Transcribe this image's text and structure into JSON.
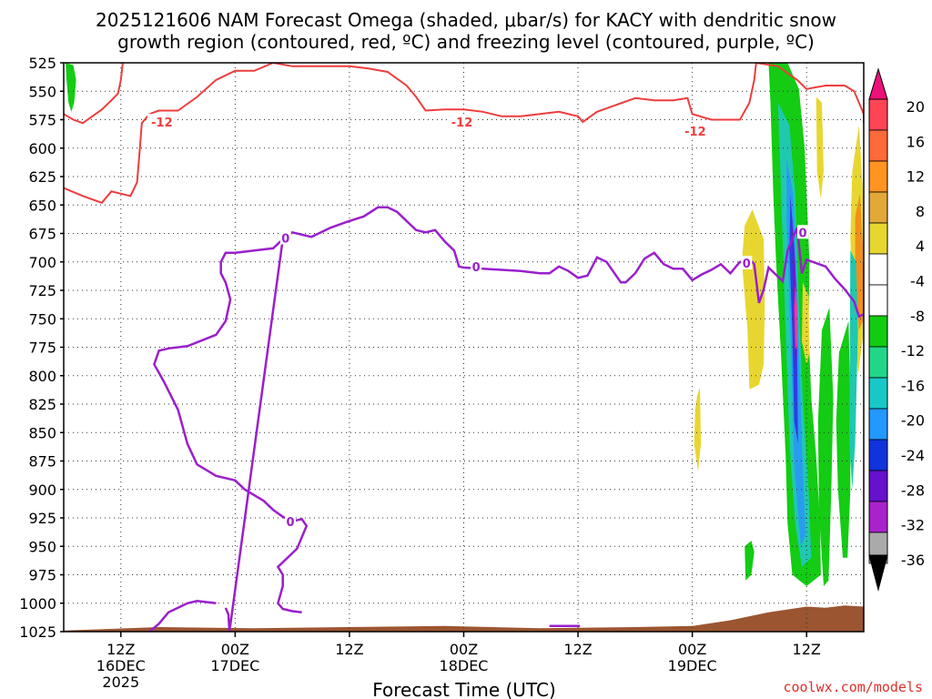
{
  "chart_data": {
    "type": "heatmap",
    "title_line1": "2025121606 NAM Forecast Omega (shaded, μbar/s) for KACY with dendritic snow",
    "title_line2": "growth region (contoured, red, ºC) and freezing level (contoured, purple, ºC)",
    "xlabel": "Forecast Time (UTC)",
    "credit": "coolwx.com/models",
    "y_axis": {
      "unit": "hPa",
      "reversed": true,
      "range": [
        525,
        1025
      ],
      "ticks": [
        525,
        550,
        575,
        600,
        625,
        650,
        675,
        700,
        725,
        750,
        775,
        800,
        825,
        850,
        875,
        900,
        925,
        950,
        975,
        1000,
        1025
      ]
    },
    "x_axis": {
      "range_hours": [
        0,
        84
      ],
      "ticks": [
        {
          "hour": 6,
          "label": "12Z",
          "sub1": "16DEC",
          "sub2": "2025"
        },
        {
          "hour": 18,
          "label": "00Z",
          "sub1": "17DEC",
          "sub2": ""
        },
        {
          "hour": 30,
          "label": "12Z",
          "sub1": "",
          "sub2": ""
        },
        {
          "hour": 42,
          "label": "00Z",
          "sub1": "18DEC",
          "sub2": ""
        },
        {
          "hour": 54,
          "label": "12Z",
          "sub1": "",
          "sub2": ""
        },
        {
          "hour": 66,
          "label": "00Z",
          "sub1": "19DEC",
          "sub2": ""
        },
        {
          "hour": 78,
          "label": "12Z",
          "sub1": "",
          "sub2": ""
        }
      ]
    },
    "grid": "dotted",
    "colorbar": {
      "labels": [
        "20",
        "16",
        "12",
        "8",
        "4",
        "-4",
        "-8",
        "-12",
        "-16",
        "-20",
        "-24",
        "-28",
        "-32",
        "-36"
      ],
      "colors": [
        "#ff3366",
        "#ff5533",
        "#ff8c1a",
        "#e0a830",
        "#e8d630",
        "#ffffff",
        "#11cc11",
        "#22d688",
        "#18c8c8",
        "#2299ff",
        "#1133dd",
        "#6611cc",
        "#aa22cc",
        "#aaaaaa"
      ]
    },
    "contour_labels": {
      "dgz": "-12",
      "freezing": "0"
    },
    "dgz_contour_minus12": [
      [
        0,
        570
      ],
      [
        1,
        575
      ],
      [
        2,
        578
      ],
      [
        3,
        572
      ],
      [
        4,
        566
      ],
      [
        5,
        558
      ],
      [
        5.7,
        552
      ],
      [
        6,
        540
      ],
      [
        6.2,
        525
      ],
      [
        0,
        635
      ],
      [
        2,
        642
      ],
      [
        4,
        648
      ],
      [
        5,
        638
      ],
      [
        6,
        640
      ],
      [
        7,
        642
      ],
      [
        7.7,
        630
      ],
      [
        8,
        600
      ],
      [
        8.2,
        578
      ],
      [
        9,
        570
      ],
      [
        10,
        567
      ],
      [
        12,
        567
      ],
      [
        14,
        555
      ],
      [
        16,
        540
      ],
      [
        18,
        532
      ],
      [
        20,
        532
      ],
      [
        22,
        525
      ],
      [
        24,
        528
      ],
      [
        26,
        528
      ],
      [
        28,
        528
      ],
      [
        30,
        528
      ],
      [
        32,
        530
      ],
      [
        34,
        533
      ],
      [
        36,
        545
      ],
      [
        37,
        555
      ],
      [
        38,
        567
      ],
      [
        40,
        566
      ],
      [
        42,
        566
      ],
      [
        44,
        568
      ],
      [
        46,
        572
      ],
      [
        48,
        572
      ],
      [
        50,
        570
      ],
      [
        52,
        568
      ],
      [
        54,
        572
      ],
      [
        54.5,
        577
      ],
      [
        56,
        568
      ],
      [
        58,
        562
      ],
      [
        60,
        556
      ],
      [
        62,
        558
      ],
      [
        64,
        558
      ],
      [
        65.5,
        556
      ],
      [
        66,
        570
      ],
      [
        68,
        575
      ],
      [
        70,
        575
      ],
      [
        71,
        575
      ],
      [
        72,
        560
      ],
      [
        72.5,
        540
      ],
      [
        72.7,
        525
      ],
      [
        75,
        528
      ],
      [
        77,
        540
      ],
      [
        78,
        548
      ],
      [
        80,
        545
      ],
      [
        82,
        545
      ],
      [
        83,
        550
      ],
      [
        84,
        570
      ],
      [
        84,
        578
      ]
    ],
    "freezing_level_contour_0": [
      [
        23,
        680
      ],
      [
        22,
        688
      ],
      [
        20,
        690
      ],
      [
        18,
        692
      ],
      [
        17,
        692
      ],
      [
        16.5,
        700
      ],
      [
        16.5,
        710
      ],
      [
        17,
        718
      ],
      [
        17.5,
        733
      ],
      [
        17,
        752
      ],
      [
        16,
        764
      ],
      [
        13,
        774
      ],
      [
        11,
        776
      ],
      [
        10,
        778
      ],
      [
        9.5,
        790
      ],
      [
        10.5,
        805
      ],
      [
        12,
        830
      ],
      [
        13,
        860
      ],
      [
        14,
        878
      ],
      [
        16,
        888
      ],
      [
        18,
        892
      ],
      [
        19,
        900
      ],
      [
        21,
        910
      ],
      [
        22,
        918
      ],
      [
        23,
        924
      ],
      [
        24,
        928
      ],
      [
        25,
        926
      ],
      [
        25.5,
        932
      ],
      [
        24.5,
        952
      ],
      [
        22.5,
        968
      ],
      [
        23,
        975
      ],
      [
        23,
        985
      ],
      [
        22.5,
        1000
      ],
      [
        23,
        1005
      ],
      [
        24,
        1007
      ],
      [
        25,
        1008
      ],
      [
        9,
        1025
      ],
      [
        10,
        1018
      ],
      [
        11,
        1008
      ],
      [
        13,
        1000
      ],
      [
        14,
        998
      ],
      [
        16,
        1000
      ],
      [
        17,
        1004
      ],
      [
        17.3,
        1010
      ],
      [
        17.4,
        1025
      ],
      [
        23,
        680
      ],
      [
        24,
        674
      ],
      [
        26,
        678
      ],
      [
        28,
        670
      ],
      [
        30,
        664
      ],
      [
        31.5,
        660
      ],
      [
        33,
        652
      ],
      [
        34,
        652
      ],
      [
        35,
        656
      ],
      [
        36,
        664
      ],
      [
        37,
        672
      ],
      [
        38,
        674
      ],
      [
        39,
        672
      ],
      [
        40,
        682
      ],
      [
        41,
        690
      ],
      [
        41.5,
        704
      ],
      [
        42,
        705
      ],
      [
        44,
        706
      ],
      [
        46,
        707
      ],
      [
        48,
        708
      ],
      [
        50,
        710
      ],
      [
        51,
        710
      ],
      [
        52,
        704
      ],
      [
        53,
        708
      ],
      [
        54,
        714
      ],
      [
        55,
        712
      ],
      [
        56,
        696
      ],
      [
        57,
        700
      ],
      [
        58,
        712
      ],
      [
        58.5,
        718
      ],
      [
        59,
        718
      ],
      [
        60,
        710
      ],
      [
        61,
        697
      ],
      [
        62,
        692
      ],
      [
        63,
        702
      ],
      [
        64,
        706
      ],
      [
        65,
        706
      ],
      [
        66,
        716
      ],
      [
        67,
        711
      ],
      [
        68,
        707
      ],
      [
        69,
        702
      ],
      [
        70,
        710
      ],
      [
        70.5,
        705
      ],
      [
        71,
        700
      ],
      [
        72.3,
        700
      ],
      [
        72.5,
        702
      ],
      [
        73,
        736
      ],
      [
        73.5,
        724
      ],
      [
        74,
        705
      ],
      [
        75,
        713
      ],
      [
        75.5,
        717
      ],
      [
        76,
        690
      ],
      [
        77,
        670
      ],
      [
        77.5,
        710
      ],
      [
        78,
        698
      ],
      [
        80,
        704
      ],
      [
        81,
        715
      ],
      [
        82,
        724
      ],
      [
        83,
        735
      ],
      [
        83.5,
        748
      ],
      [
        84,
        746
      ]
    ],
    "terrain_pressure": [
      [
        0,
        1024
      ],
      [
        10,
        1021
      ],
      [
        20,
        1022
      ],
      [
        30,
        1021
      ],
      [
        40,
        1020
      ],
      [
        50,
        1022
      ],
      [
        60,
        1021
      ],
      [
        66,
        1020
      ],
      [
        70,
        1015
      ],
      [
        74,
        1008
      ],
      [
        78,
        1003
      ],
      [
        80,
        1004
      ],
      [
        82,
        1002
      ],
      [
        84,
        1003
      ]
    ],
    "omega_regions": [
      {
        "value": -8,
        "points": [
          [
            0.2,
            525
          ],
          [
            1,
            527
          ],
          [
            1.3,
            540
          ],
          [
            1.1,
            560
          ],
          [
            0.8,
            568
          ],
          [
            0.5,
            560
          ],
          [
            0.3,
            540
          ]
        ]
      },
      {
        "value": 6,
        "points": [
          [
            71.5,
            668
          ],
          [
            72.3,
            654
          ],
          [
            73.5,
            680
          ],
          [
            73.6,
            740
          ],
          [
            73.5,
            790
          ],
          [
            73,
            808
          ],
          [
            72,
            812
          ],
          [
            71.8,
            760
          ],
          [
            71.2,
            700
          ]
        ]
      },
      {
        "value": 6,
        "points": [
          [
            66.5,
            818
          ],
          [
            66.8,
            810
          ],
          [
            66.9,
            860
          ],
          [
            66.6,
            884
          ],
          [
            66.2,
            860
          ],
          [
            66.3,
            830
          ]
        ]
      },
      {
        "value": -8,
        "points": [
          [
            74,
            525
          ],
          [
            76,
            525
          ],
          [
            77.2,
            548
          ],
          [
            77.8,
            600
          ],
          [
            78,
            640
          ],
          [
            78.3,
            700
          ],
          [
            78.2,
            760
          ],
          [
            78.5,
            820
          ],
          [
            79,
            870
          ],
          [
            79.4,
            930
          ],
          [
            79.5,
            975
          ],
          [
            78,
            985
          ],
          [
            76.5,
            975
          ],
          [
            76,
            930
          ],
          [
            75.8,
            870
          ],
          [
            75.3,
            780
          ],
          [
            74.8,
            700
          ],
          [
            74.5,
            640
          ],
          [
            74.2,
            560
          ]
        ]
      },
      {
        "value": -10,
        "points": [
          [
            75,
            560
          ],
          [
            76.2,
            580
          ],
          [
            76.8,
            640
          ],
          [
            77.1,
            720
          ],
          [
            77.6,
            820
          ],
          [
            78.2,
            900
          ],
          [
            78.5,
            960
          ],
          [
            77.5,
            968
          ],
          [
            76.8,
            930
          ],
          [
            76.2,
            860
          ],
          [
            75.8,
            760
          ],
          [
            75.4,
            660
          ]
        ]
      },
      {
        "value": -12,
        "points": [
          [
            75.9,
            610
          ],
          [
            76.6,
            640
          ],
          [
            77,
            720
          ],
          [
            77.5,
            860
          ],
          [
            77.9,
            940
          ],
          [
            77.4,
            950
          ],
          [
            76.7,
            880
          ],
          [
            76.3,
            760
          ],
          [
            75.9,
            660
          ]
        ]
      },
      {
        "value": -20,
        "points": [
          [
            76.3,
            640
          ],
          [
            76.8,
            700
          ],
          [
            77,
            780
          ],
          [
            77.1,
            860
          ],
          [
            76.7,
            840
          ],
          [
            76.5,
            760
          ],
          [
            76.2,
            690
          ]
        ]
      },
      {
        "value": -28,
        "points": [
          [
            76.5,
            660
          ],
          [
            76.9,
            720
          ],
          [
            77.0,
            780
          ],
          [
            76.8,
            790
          ],
          [
            76.6,
            730
          ]
        ]
      },
      {
        "value": 20,
        "points": [
          [
            76.8,
            720
          ],
          [
            77.0,
            740
          ],
          [
            77.0,
            776
          ],
          [
            76.8,
            776
          ],
          [
            76.7,
            740
          ]
        ]
      },
      {
        "value": -8,
        "points": [
          [
            71.5,
            950
          ],
          [
            72.2,
            945
          ],
          [
            72.5,
            955
          ],
          [
            72.2,
            975
          ],
          [
            71.6,
            980
          ]
        ]
      },
      {
        "value": 6,
        "points": [
          [
            79,
            555
          ],
          [
            79.6,
            560
          ],
          [
            79.8,
            620
          ],
          [
            79.5,
            645
          ],
          [
            79.1,
            620
          ]
        ]
      },
      {
        "value": 6,
        "points": [
          [
            82.8,
            620
          ],
          [
            83.5,
            580
          ],
          [
            84,
            650
          ],
          [
            84,
            760
          ],
          [
            83.4,
            800
          ],
          [
            82.9,
            740
          ],
          [
            82.6,
            680
          ]
        ]
      },
      {
        "value": 12,
        "points": [
          [
            83.1,
            660
          ],
          [
            83.6,
            640
          ],
          [
            84,
            700
          ],
          [
            84,
            750
          ],
          [
            83.5,
            760
          ],
          [
            83.1,
            720
          ]
        ]
      },
      {
        "value": -8,
        "points": [
          [
            79.6,
            760
          ],
          [
            80.4,
            740
          ],
          [
            80.8,
            820
          ],
          [
            80.6,
            900
          ],
          [
            80.3,
            980
          ],
          [
            79.8,
            985
          ],
          [
            79.3,
            920
          ],
          [
            79.2,
            840
          ]
        ]
      },
      {
        "value": -8,
        "points": [
          [
            81.4,
            780
          ],
          [
            82.4,
            752
          ],
          [
            82.6,
            820
          ],
          [
            82.6,
            900
          ],
          [
            82.3,
            960
          ],
          [
            81.8,
            960
          ],
          [
            81.3,
            900
          ],
          [
            81.1,
            840
          ]
        ]
      },
      {
        "value": -10,
        "points": [
          [
            82.6,
            690
          ],
          [
            83.2,
            700
          ],
          [
            83.4,
            760
          ],
          [
            83.1,
            860
          ],
          [
            82.8,
            900
          ],
          [
            82.5,
            860
          ]
        ]
      },
      {
        "value": 6,
        "points": [
          [
            77.6,
            718
          ],
          [
            78.2,
            730
          ],
          [
            78.3,
            780
          ],
          [
            78,
            790
          ],
          [
            77.5,
            770
          ]
        ]
      },
      {
        "value": 6,
        "points": [
          [
            84,
            620
          ],
          [
            84,
            700
          ],
          [
            83.9,
            700
          ],
          [
            83.95,
            630
          ]
        ]
      }
    ]
  }
}
